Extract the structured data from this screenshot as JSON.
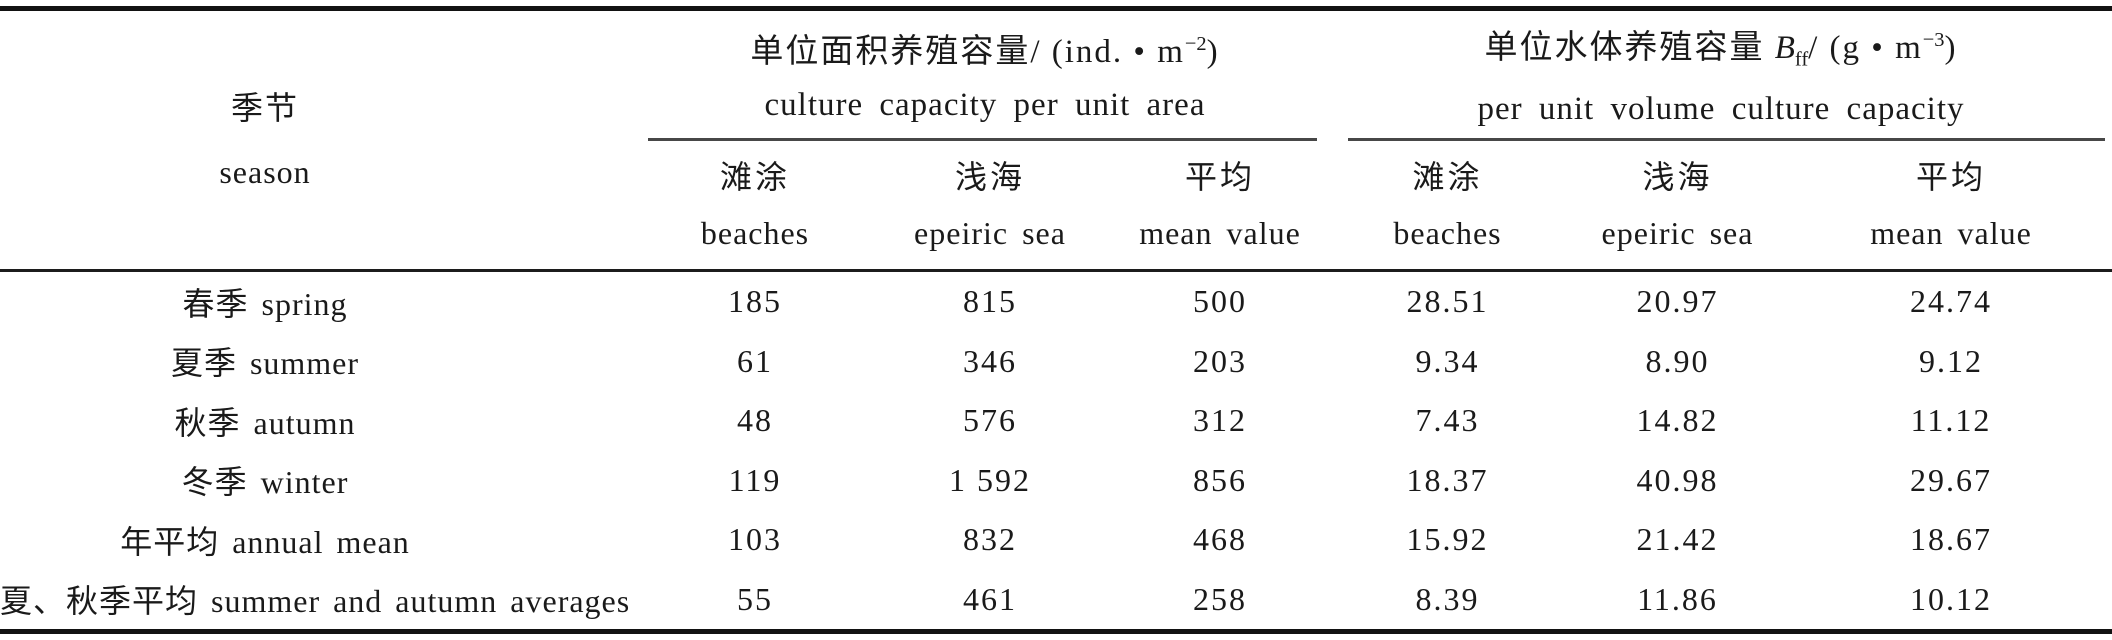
{
  "page": {
    "background": "#ffffff",
    "text_color": "#1a1a1a",
    "rule_color_heavy": "#121212",
    "rule_color_mid": "#1c1c1c",
    "rule_color_light": "#474747"
  },
  "table": {
    "header": {
      "season_cn": "季节",
      "season_en": "season",
      "group_area": {
        "title_cn": "单位面积养殖容量/ (ind. • m",
        "title_sup": "−2",
        "title_close": ")",
        "subtitle_en": "culture capacity per unit area"
      },
      "group_volume": {
        "title_cn": "单位水体养殖容量 ",
        "symbol": "B",
        "symbol_sub": "ff",
        "title_mid": "/ (g • m",
        "title_sup": "−3",
        "title_close": ")",
        "subtitle_en": "per unit volume culture capacity"
      },
      "subheaders": [
        {
          "cn": "滩涂",
          "en": "beaches"
        },
        {
          "cn": "浅海",
          "en": "epeiric sea"
        },
        {
          "cn": "平均",
          "en": "mean value"
        },
        {
          "cn": "滩涂",
          "en": "beaches"
        },
        {
          "cn": "浅海",
          "en": "epeiric sea"
        },
        {
          "cn": "平均",
          "en": "mean value"
        }
      ]
    },
    "rows": [
      {
        "label": "春季 spring",
        "values": [
          "185",
          "815",
          "500",
          "28.51",
          "20.97",
          "24.74"
        ]
      },
      {
        "label": "夏季 summer",
        "values": [
          "61",
          "346",
          "203",
          "9.34",
          "8.90",
          "9.12"
        ]
      },
      {
        "label": "秋季 autumn",
        "values": [
          "48",
          "576",
          "312",
          "7.43",
          "14.82",
          "11.12"
        ]
      },
      {
        "label": "冬季 winter",
        "values": [
          "119",
          "1 592",
          "856",
          "18.37",
          "40.98",
          "29.67"
        ]
      },
      {
        "label": "年平均 annual mean",
        "values": [
          "103",
          "832",
          "468",
          "15.92",
          "21.42",
          "18.67"
        ]
      },
      {
        "label": "夏、秋季平均 summer and autumn averages",
        "values": [
          "55",
          "461",
          "258",
          "8.39",
          "11.86",
          "10.12"
        ]
      }
    ]
  },
  "chart_data": {
    "type": "table",
    "title": "季节 season — 单位面积养殖容量/(ind.•m−2) culture capacity per unit area; 单位水体养殖容量 Bff/(g•m−3) per unit volume culture capacity",
    "columns": [
      "season",
      "beaches (ind./m2)",
      "epeiric sea (ind./m2)",
      "mean value (ind./m2)",
      "beaches (g/m3)",
      "epeiric sea (g/m3)",
      "mean value (g/m3)"
    ],
    "rows": [
      [
        "春季 spring",
        185,
        815,
        500,
        28.51,
        20.97,
        24.74
      ],
      [
        "夏季 summer",
        61,
        346,
        203,
        9.34,
        8.9,
        9.12
      ],
      [
        "秋季 autumn",
        48,
        576,
        312,
        7.43,
        14.82,
        11.12
      ],
      [
        "冬季 winter",
        119,
        1592,
        856,
        18.37,
        40.98,
        29.67
      ],
      [
        "年平均 annual mean",
        103,
        832,
        468,
        15.92,
        21.42,
        18.67
      ],
      [
        "夏、秋季平均 summer and autumn averages",
        55,
        461,
        258,
        8.39,
        11.86,
        10.12
      ]
    ]
  }
}
